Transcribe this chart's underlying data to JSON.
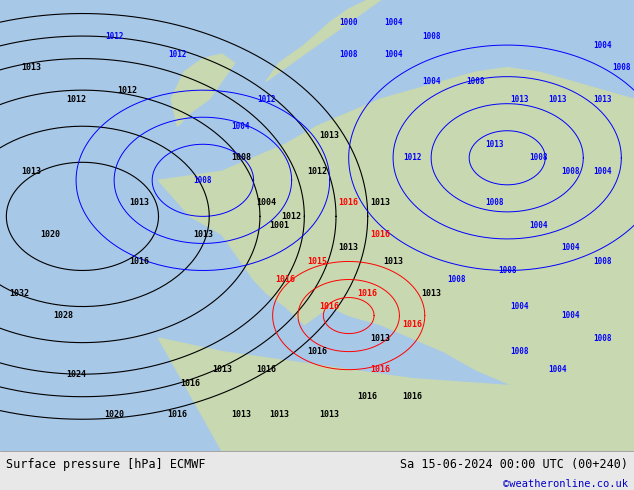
{
  "title_left": "Surface pressure [hPa] ECMWF",
  "title_right": "Sa 15-06-2024 00:00 UTC (00+240)",
  "credit": "©weatheronline.co.uk",
  "credit_color": "#0000cc",
  "bg_color": "#d0e8d0",
  "ocean_color": "#a8c8e8",
  "land_color": "#c8d8b0",
  "footer_bg": "#e8e8e8",
  "footer_text_color": "#000000",
  "black_contour_color": "#000000",
  "blue_contour_color": "#0000ff",
  "red_contour_color": "#ff0000",
  "figsize": [
    6.34,
    4.9
  ],
  "dpi": 100
}
